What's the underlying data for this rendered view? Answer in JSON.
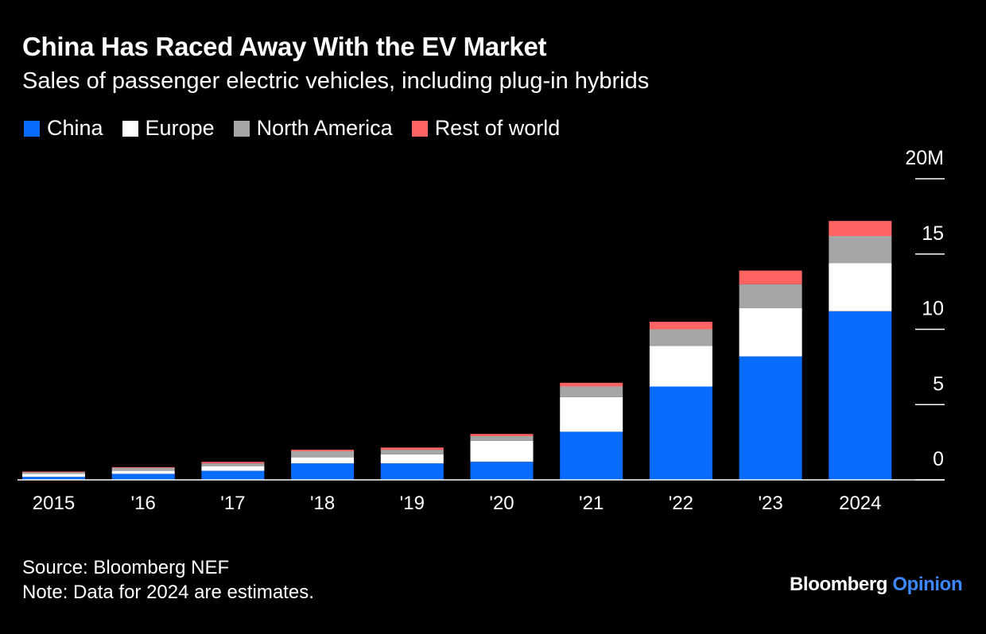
{
  "header": {
    "title": "China Has Raced Away With the EV Market",
    "subtitle": "Sales of passenger electric vehicles, including plug-in hybrids"
  },
  "legend": [
    {
      "label": "China",
      "color": "#0a6cff"
    },
    {
      "label": "Europe",
      "color": "#ffffff"
    },
    {
      "label": "North America",
      "color": "#a6a6a6"
    },
    {
      "label": "Rest of world",
      "color": "#ff6363"
    }
  ],
  "chart_data": {
    "type": "bar",
    "stacked": true,
    "categories": [
      "2015",
      "'16",
      "'17",
      "'18",
      "'19",
      "'20",
      "'21",
      "'22",
      "'23",
      "2024"
    ],
    "series": [
      {
        "name": "China",
        "color": "#0a6cff",
        "values": [
          0.2,
          0.4,
          0.6,
          1.1,
          1.1,
          1.2,
          3.2,
          6.2,
          8.2,
          11.2
        ]
      },
      {
        "name": "Europe",
        "color": "#ffffff",
        "values": [
          0.2,
          0.2,
          0.3,
          0.4,
          0.6,
          1.4,
          2.3,
          2.7,
          3.2,
          3.2
        ]
      },
      {
        "name": "North America",
        "color": "#a6a6a6",
        "values": [
          0.1,
          0.2,
          0.2,
          0.4,
          0.3,
          0.3,
          0.7,
          1.1,
          1.6,
          1.8
        ]
      },
      {
        "name": "Rest of world",
        "color": "#ff6363",
        "values": [
          0.05,
          0.05,
          0.1,
          0.1,
          0.15,
          0.15,
          0.25,
          0.5,
          0.9,
          1.0
        ]
      }
    ],
    "y_ticks": [
      {
        "value": 0,
        "label": "0"
      },
      {
        "value": 5,
        "label": "5"
      },
      {
        "value": 10,
        "label": "10"
      },
      {
        "value": 15,
        "label": "15"
      },
      {
        "value": 20,
        "label": "20M"
      }
    ],
    "ylim": [
      0,
      20
    ],
    "y_axis_side": "right",
    "grid": false,
    "legend_position": "top-left"
  },
  "footer": {
    "source": "Source: Bloomberg NEF",
    "note": "Note: Data for 2024 are estimates."
  },
  "brand": {
    "name": "Bloomberg",
    "section": "Opinion"
  }
}
